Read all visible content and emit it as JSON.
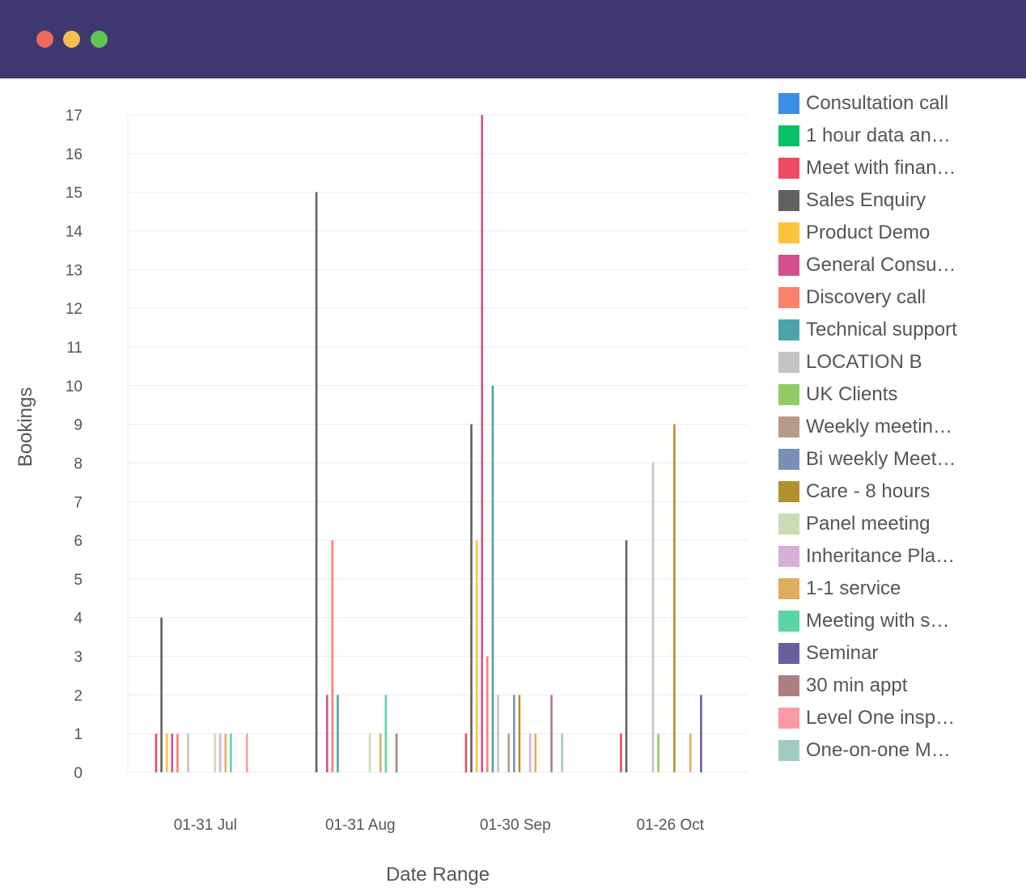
{
  "window": {
    "controls": [
      "close",
      "minimize",
      "maximize"
    ]
  },
  "chart_data": {
    "type": "bar",
    "xlabel": "Date Range",
    "ylabel": "Bookings",
    "ylim": [
      0,
      17
    ],
    "yticks": [
      0,
      1,
      2,
      3,
      4,
      5,
      6,
      7,
      8,
      9,
      10,
      11,
      12,
      13,
      14,
      15,
      16,
      17
    ],
    "grid": true,
    "legend_position": "right",
    "categories": [
      "01-31 Jul",
      "01-31 Aug",
      "01-30 Sep",
      "01-26 Oct"
    ],
    "series": [
      {
        "name": "Consultation call",
        "color": "#3d8fe4",
        "values": [
          0,
          0,
          0,
          0
        ]
      },
      {
        "name": "1 hour data an…",
        "color": "#06c16a",
        "values": [
          0,
          0,
          0,
          0
        ]
      },
      {
        "name": "Meet with finan…",
        "color": "#f04a62",
        "values": [
          1,
          0,
          1,
          1
        ]
      },
      {
        "name": "Sales Enquiry",
        "color": "#616161",
        "values": [
          4,
          15,
          9,
          6
        ]
      },
      {
        "name": "Product Demo",
        "color": "#fcc43a",
        "values": [
          1,
          0,
          6,
          0
        ]
      },
      {
        "name": "General Consu…",
        "color": "#d4508a",
        "values": [
          1,
          2,
          17,
          0
        ]
      },
      {
        "name": "Discovery call",
        "color": "#f9826c",
        "values": [
          1,
          6,
          3,
          0
        ]
      },
      {
        "name": "Technical support",
        "color": "#4ea3aa",
        "values": [
          0,
          2,
          10,
          0
        ]
      },
      {
        "name": "LOCATION B",
        "color": "#c4c4c4",
        "values": [
          1,
          0,
          2,
          8
        ]
      },
      {
        "name": "UK Clients",
        "color": "#8fcd64",
        "values": [
          0,
          0,
          0,
          1
        ]
      },
      {
        "name": "Weekly meetin…",
        "color": "#b99a89",
        "values": [
          0,
          0,
          1,
          0
        ]
      },
      {
        "name": "Bi weekly Meet…",
        "color": "#7b8fb6",
        "values": [
          0,
          0,
          2,
          0
        ]
      },
      {
        "name": "Care - 8 hours",
        "color": "#b2902c",
        "values": [
          0,
          0,
          2,
          9
        ]
      },
      {
        "name": "Panel meeting",
        "color": "#cbdcb6",
        "values": [
          1,
          1,
          0,
          0
        ]
      },
      {
        "name": "Inheritance Pla…",
        "color": "#d7afd7",
        "values": [
          1,
          0,
          1,
          0
        ]
      },
      {
        "name": "1-1 service",
        "color": "#e2ac60",
        "values": [
          1,
          1,
          1,
          1
        ]
      },
      {
        "name": "Meeting with s…",
        "color": "#5bd5a4",
        "values": [
          1,
          2,
          0,
          0
        ]
      },
      {
        "name": "Seminar",
        "color": "#6a5f9e",
        "values": [
          0,
          0,
          0,
          2
        ]
      },
      {
        "name": "30 min appt",
        "color": "#ad7f80",
        "values": [
          0,
          1,
          2,
          0
        ]
      },
      {
        "name": "Level One insp…",
        "color": "#f99aa7",
        "values": [
          1,
          0,
          0,
          0
        ]
      },
      {
        "name": "One-on-one M…",
        "color": "#a0cbc3",
        "values": [
          0,
          0,
          1,
          0
        ]
      }
    ]
  }
}
